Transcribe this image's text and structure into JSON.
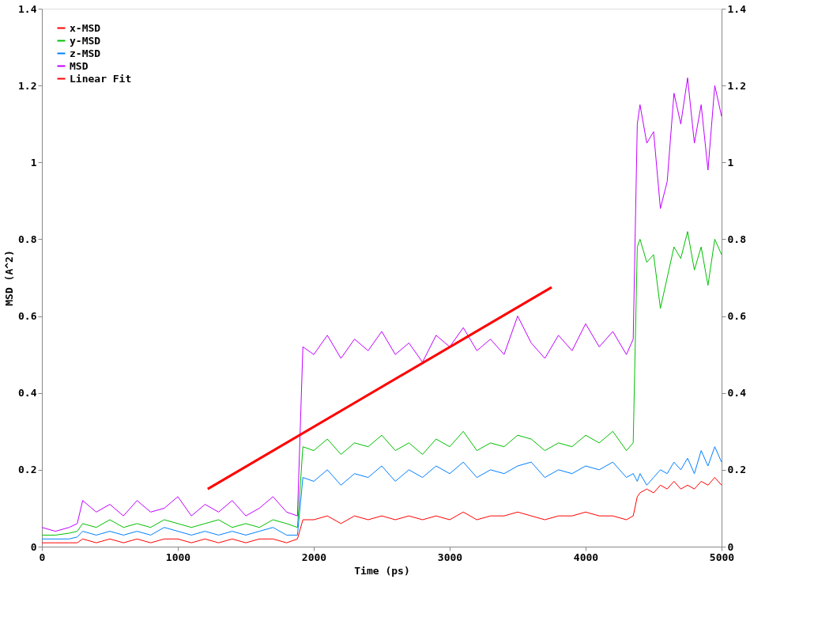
{
  "chart_data": {
    "type": "line",
    "xlabel": "Time (ps)",
    "ylabel": "MSD (A^2)",
    "x": [
      0,
      100,
      200,
      260,
      300,
      400,
      500,
      600,
      700,
      800,
      900,
      1000,
      1100,
      1200,
      1300,
      1400,
      1500,
      1600,
      1700,
      1800,
      1880,
      1920,
      2000,
      2100,
      2200,
      2300,
      2400,
      2500,
      2600,
      2700,
      2800,
      2900,
      3000,
      3100,
      3200,
      3300,
      3400,
      3500,
      3600,
      3700,
      3800,
      3900,
      4000,
      4100,
      4200,
      4300,
      4350,
      4380,
      4400,
      4450,
      4500,
      4550,
      4600,
      4650,
      4700,
      4750,
      4800,
      4850,
      4900,
      4950,
      5000
    ],
    "series": [
      {
        "name": "x-MSD",
        "color": "#ff0000",
        "values": [
          0.01,
          0.01,
          0.01,
          0.01,
          0.02,
          0.01,
          0.02,
          0.01,
          0.02,
          0.01,
          0.02,
          0.02,
          0.01,
          0.02,
          0.01,
          0.02,
          0.01,
          0.02,
          0.02,
          0.01,
          0.02,
          0.07,
          0.07,
          0.08,
          0.06,
          0.08,
          0.07,
          0.08,
          0.07,
          0.08,
          0.07,
          0.08,
          0.07,
          0.09,
          0.07,
          0.08,
          0.08,
          0.09,
          0.08,
          0.07,
          0.08,
          0.08,
          0.09,
          0.08,
          0.08,
          0.07,
          0.08,
          0.13,
          0.14,
          0.15,
          0.14,
          0.16,
          0.15,
          0.17,
          0.15,
          0.16,
          0.15,
          0.17,
          0.16,
          0.18,
          0.16
        ]
      },
      {
        "name": "y-MSD",
        "color": "#00c000",
        "values": [
          0.03,
          0.03,
          0.035,
          0.04,
          0.06,
          0.05,
          0.07,
          0.05,
          0.06,
          0.05,
          0.07,
          0.06,
          0.05,
          0.06,
          0.07,
          0.05,
          0.06,
          0.05,
          0.07,
          0.06,
          0.05,
          0.26,
          0.25,
          0.28,
          0.24,
          0.27,
          0.26,
          0.29,
          0.25,
          0.27,
          0.24,
          0.28,
          0.26,
          0.3,
          0.25,
          0.27,
          0.26,
          0.29,
          0.28,
          0.25,
          0.27,
          0.26,
          0.29,
          0.27,
          0.3,
          0.25,
          0.27,
          0.78,
          0.8,
          0.74,
          0.76,
          0.62,
          0.7,
          0.78,
          0.75,
          0.82,
          0.72,
          0.78,
          0.68,
          0.8,
          0.76
        ]
      },
      {
        "name": "z-MSD",
        "color": "#0080ff",
        "values": [
          0.02,
          0.02,
          0.02,
          0.025,
          0.04,
          0.03,
          0.04,
          0.03,
          0.04,
          0.03,
          0.05,
          0.04,
          0.03,
          0.04,
          0.03,
          0.04,
          0.03,
          0.04,
          0.05,
          0.03,
          0.03,
          0.18,
          0.17,
          0.2,
          0.16,
          0.19,
          0.18,
          0.21,
          0.17,
          0.2,
          0.18,
          0.21,
          0.19,
          0.22,
          0.18,
          0.2,
          0.19,
          0.21,
          0.22,
          0.18,
          0.2,
          0.19,
          0.21,
          0.2,
          0.22,
          0.18,
          0.19,
          0.17,
          0.19,
          0.16,
          0.18,
          0.2,
          0.19,
          0.22,
          0.2,
          0.23,
          0.19,
          0.25,
          0.21,
          0.26,
          0.22
        ]
      },
      {
        "name": "MSD",
        "color": "#c000ff",
        "values": [
          0.05,
          0.04,
          0.05,
          0.06,
          0.12,
          0.09,
          0.11,
          0.08,
          0.12,
          0.09,
          0.1,
          0.13,
          0.08,
          0.11,
          0.09,
          0.12,
          0.08,
          0.1,
          0.13,
          0.09,
          0.08,
          0.52,
          0.5,
          0.55,
          0.49,
          0.54,
          0.51,
          0.56,
          0.5,
          0.53,
          0.48,
          0.55,
          0.52,
          0.57,
          0.51,
          0.54,
          0.5,
          0.6,
          0.53,
          0.49,
          0.55,
          0.51,
          0.58,
          0.52,
          0.56,
          0.5,
          0.54,
          1.1,
          1.15,
          1.05,
          1.08,
          0.88,
          0.95,
          1.18,
          1.1,
          1.22,
          1.05,
          1.15,
          0.98,
          1.2,
          1.12
        ]
      },
      {
        "name": "Linear Fit",
        "color": "#ff0000",
        "x": [
          1220,
          3750
        ],
        "values": [
          0.15,
          0.675
        ]
      }
    ],
    "xlim": [
      0,
      5000
    ],
    "xticks": [
      0,
      1000,
      2000,
      3000,
      4000,
      5000
    ],
    "ylim": [
      0,
      1.4
    ],
    "yticks": [
      0,
      0.2,
      0.4,
      0.6,
      0.8,
      1,
      1.2,
      1.4
    ],
    "y2lim": [
      0,
      1.4
    ],
    "y2ticks": [
      0,
      0.2,
      0.4,
      0.6,
      0.8,
      1,
      1.2,
      1.4
    ],
    "grid": false,
    "legend": "top left",
    "marker": "none",
    "line_style": "solid"
  }
}
